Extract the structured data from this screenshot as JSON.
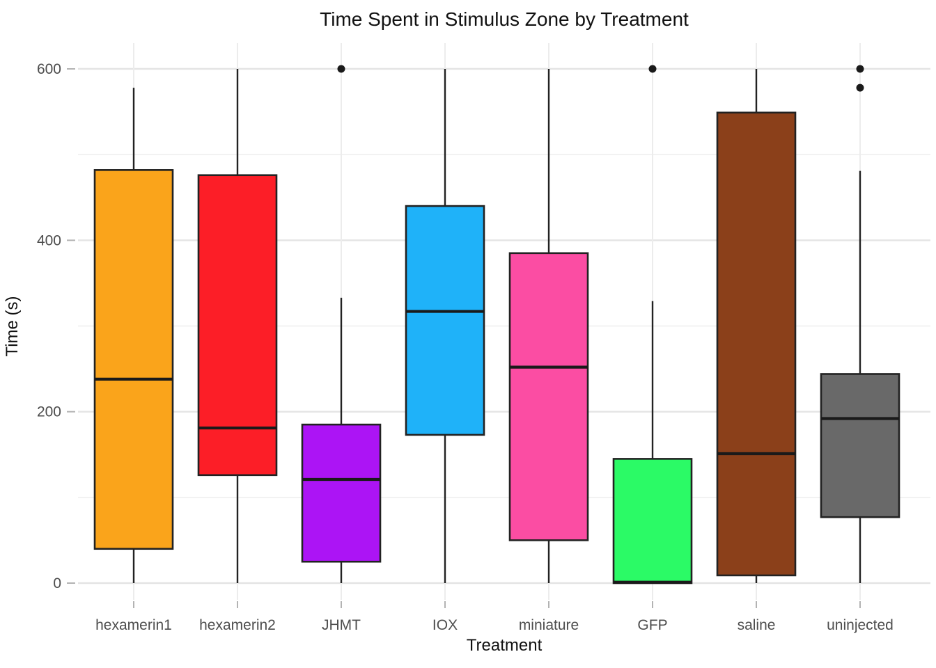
{
  "chart_data": {
    "type": "boxplot",
    "title": "Time Spent in Stimulus Zone by Treatment",
    "xlabel": "Treatment",
    "ylabel": "Time (s)",
    "ylim": [
      0,
      600
    ],
    "yticks": [
      0,
      200,
      400,
      600
    ],
    "yticks_minor": [
      100,
      300,
      500
    ],
    "grid": true,
    "legend": "none",
    "background": "#FFFFFF",
    "gridline_color": "#E4E4E4",
    "tick_label_color": "#4D4D4D",
    "box_stroke_color": "#222222",
    "categories": [
      "hexamerin1",
      "hexamerin2",
      "JHMT",
      "IOX",
      "miniature",
      "GFP",
      "saline",
      "uninjected"
    ],
    "series": [
      {
        "name": "hexamerin1",
        "color": "#FAA41B",
        "min": 0,
        "q1": 40,
        "median": 238,
        "q3": 482,
        "max": 578,
        "outliers": []
      },
      {
        "name": "hexamerin2",
        "color": "#FC1E27",
        "min": 0,
        "q1": 126,
        "median": 181,
        "q3": 476,
        "max": 600,
        "outliers": []
      },
      {
        "name": "JHMT",
        "color": "#AC14F5",
        "min": 0,
        "q1": 25,
        "median": 121,
        "q3": 185,
        "max": 333,
        "outliers": [
          600
        ]
      },
      {
        "name": "IOX",
        "color": "#1FB2F9",
        "min": 0,
        "q1": 173,
        "median": 317,
        "q3": 440,
        "max": 600,
        "outliers": []
      },
      {
        "name": "miniature",
        "color": "#FB4DA3",
        "min": 0,
        "q1": 50,
        "median": 252,
        "q3": 385,
        "max": 600,
        "outliers": []
      },
      {
        "name": "GFP",
        "color": "#2BFA66",
        "min": 0,
        "q1": 0,
        "median": 1,
        "q3": 145,
        "max": 329,
        "outliers": [
          600
        ]
      },
      {
        "name": "saline",
        "color": "#8B401A",
        "min": 0,
        "q1": 9,
        "median": 151,
        "q3": 549,
        "max": 600,
        "outliers": []
      },
      {
        "name": "uninjected",
        "color": "#696969",
        "min": 0,
        "q1": 77,
        "median": 192,
        "q3": 244,
        "max": 481,
        "outliers": [
          600,
          578
        ]
      }
    ]
  }
}
